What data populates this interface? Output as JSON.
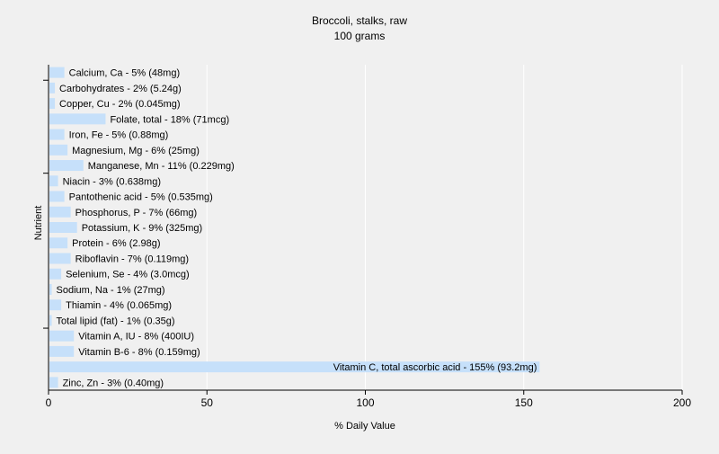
{
  "chart_data": {
    "type": "bar",
    "orientation": "horizontal",
    "title": "Broccoli, stalks, raw",
    "subtitle": "100 grams",
    "xlabel": "% Daily Value",
    "ylabel": "Nutrient",
    "xlim": [
      0,
      200
    ],
    "xticks": [
      0,
      50,
      100,
      150,
      200
    ],
    "grid": "vertical",
    "bar_color": "#c6e0fa",
    "grid_color": "#ffffff",
    "categories": [
      "Calcium, Ca",
      "Carbohydrates",
      "Copper, Cu",
      "Folate, total",
      "Iron, Fe",
      "Magnesium, Mg",
      "Manganese, Mn",
      "Niacin",
      "Pantothenic acid",
      "Phosphorus, P",
      "Potassium, K",
      "Protein",
      "Riboflavin",
      "Selenium, Se",
      "Sodium, Na",
      "Thiamin",
      "Total lipid (fat)",
      "Vitamin A, IU",
      "Vitamin B-6",
      "Vitamin C, total ascorbic acid",
      "Zinc, Zn"
    ],
    "values": [
      5,
      2,
      2,
      18,
      5,
      6,
      11,
      3,
      5,
      7,
      9,
      6,
      7,
      4,
      1,
      4,
      1,
      8,
      8,
      155,
      3
    ],
    "labels": [
      "Calcium, Ca - 5% (48mg)",
      "Carbohydrates - 2% (5.24g)",
      "Copper, Cu - 2% (0.045mg)",
      "Folate, total - 18% (71mcg)",
      "Iron, Fe - 5% (0.88mg)",
      "Magnesium, Mg - 6% (25mg)",
      "Manganese, Mn - 11% (0.229mg)",
      "Niacin - 3% (0.638mg)",
      "Pantothenic acid - 5% (0.535mg)",
      "Phosphorus, P - 7% (66mg)",
      "Potassium, K - 9% (325mg)",
      "Protein - 6% (2.98g)",
      "Riboflavin - 7% (0.119mg)",
      "Selenium, Se - 4% (3.0mcg)",
      "Sodium, Na - 1% (27mg)",
      "Thiamin - 4% (0.065mg)",
      "Total lipid (fat) - 1% (0.35g)",
      "Vitamin A, IU - 8% (400IU)",
      "Vitamin B-6 - 8% (0.159mg)",
      "Vitamin C, total ascorbic acid - 155% (93.2mg)",
      "Zinc, Zn - 3% (0.40mg)"
    ]
  }
}
